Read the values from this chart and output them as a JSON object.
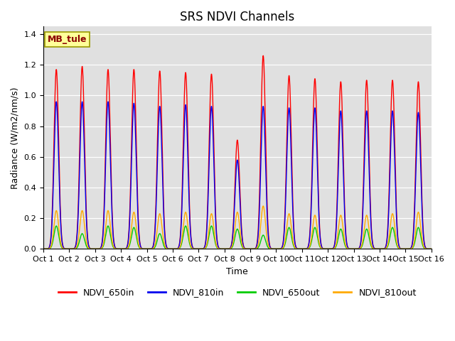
{
  "title": "SRS NDVI Channels",
  "xlabel": "Time",
  "ylabel": "Radiance (W/m2/nm/s)",
  "xlim": [
    0,
    15
  ],
  "ylim": [
    0.0,
    1.45
  ],
  "yticks": [
    0.0,
    0.2,
    0.4,
    0.6,
    0.8,
    1.0,
    1.2,
    1.4
  ],
  "xtick_labels": [
    "Oct 1",
    "Oct 2",
    "Oct 3",
    "Oct 4",
    "Oct 5",
    "Oct 6",
    "Oct 7",
    "Oct 8",
    "Oct 9",
    "Oct 10",
    "Oct 11",
    "Oct 12",
    "Oct 13",
    "Oct 14",
    "Oct 15",
    "Oct 16"
  ],
  "xtick_positions": [
    0,
    1,
    2,
    3,
    4,
    5,
    6,
    7,
    8,
    9,
    10,
    11,
    12,
    13,
    14,
    15
  ],
  "annotation_text": "MB_tule",
  "bg_color": "#e0e0e0",
  "colors": {
    "NDVI_650in": "#ff0000",
    "NDVI_810in": "#0000ee",
    "NDVI_650out": "#00cc00",
    "NDVI_810out": "#ffaa00"
  },
  "peak_650in": [
    1.17,
    1.19,
    1.17,
    1.17,
    1.16,
    1.15,
    1.14,
    0.71,
    1.26,
    1.13,
    1.11,
    1.09,
    1.1,
    1.1,
    1.09
  ],
  "peak_810in": [
    0.96,
    0.96,
    0.96,
    0.95,
    0.93,
    0.94,
    0.93,
    0.58,
    0.93,
    0.92,
    0.92,
    0.9,
    0.9,
    0.9,
    0.89
  ],
  "peak_650out": [
    0.15,
    0.1,
    0.15,
    0.14,
    0.1,
    0.15,
    0.15,
    0.13,
    0.09,
    0.14,
    0.14,
    0.13,
    0.13,
    0.14,
    0.14
  ],
  "peak_810out": [
    0.25,
    0.25,
    0.25,
    0.24,
    0.23,
    0.24,
    0.23,
    0.24,
    0.28,
    0.23,
    0.22,
    0.22,
    0.22,
    0.23,
    0.24
  ],
  "sigma": 0.09,
  "points_per_day": 500,
  "n_days": 15,
  "figsize": [
    6.4,
    4.8
  ],
  "dpi": 100,
  "title_fontsize": 12,
  "axis_fontsize": 9,
  "tick_fontsize": 8,
  "linewidth": 1.0,
  "legend_fontsize": 9
}
